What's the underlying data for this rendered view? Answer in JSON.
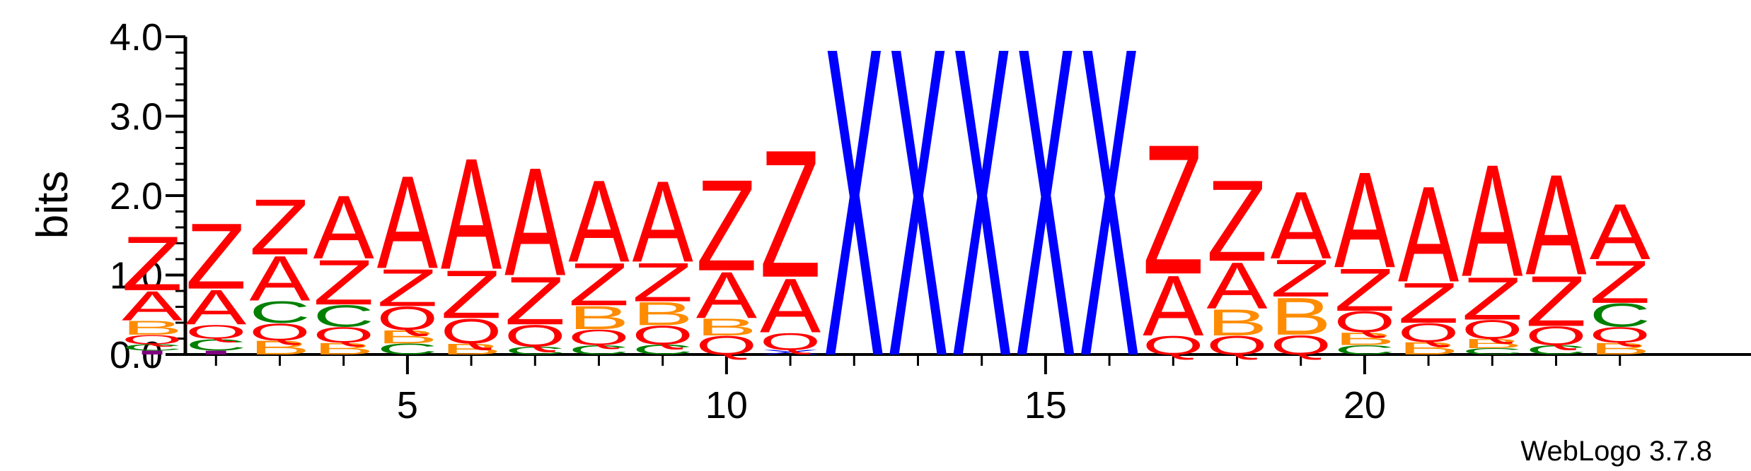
{
  "chart_data": {
    "type": "sequence-logo",
    "ylabel": "bits",
    "ylim": [
      0,
      4.0
    ],
    "yticks": [
      "0.0",
      "1.0",
      "2.0",
      "3.0",
      "4.0"
    ],
    "xticks": [
      "5",
      "10",
      "15",
      "20"
    ],
    "xtick_positions": [
      5,
      10,
      15,
      20
    ],
    "positions": 24,
    "credit": "WebLogo 3.7.8",
    "colors": {
      "Z": "#ff0000",
      "A": "#ff0000",
      "Q": "#ff0000",
      "X": "#0000ff",
      "B": "#ff8c00",
      "C": "#008000",
      "I": "#800080"
    },
    "stacks": [
      [
        [
          "I",
          0.05
        ],
        [
          "C",
          0.08
        ],
        [
          "Q",
          0.12
        ],
        [
          "B",
          0.18
        ],
        [
          "A",
          0.38
        ],
        [
          "Z",
          0.7
        ]
      ],
      [
        [
          "I",
          0.05
        ],
        [
          "C",
          0.15
        ],
        [
          "Q",
          0.18
        ],
        [
          "A",
          0.45
        ],
        [
          "Z",
          0.85
        ]
      ],
      [
        [
          "B",
          0.18
        ],
        [
          "Q",
          0.22
        ],
        [
          "C",
          0.28
        ],
        [
          "A",
          0.58
        ],
        [
          "Z",
          0.72
        ]
      ],
      [
        [
          "B",
          0.15
        ],
        [
          "Q",
          0.2
        ],
        [
          "C",
          0.28
        ],
        [
          "Z",
          0.58
        ],
        [
          "A",
          0.82
        ]
      ],
      [
        [
          "C",
          0.14
        ],
        [
          "B",
          0.17
        ],
        [
          "Q",
          0.3
        ],
        [
          "Z",
          0.48
        ],
        [
          "A",
          1.2
        ]
      ],
      [
        [
          "B",
          0.14
        ],
        [
          "Q",
          0.32
        ],
        [
          "Z",
          0.62
        ],
        [
          "A",
          1.44
        ]
      ],
      [
        [
          "C",
          0.1
        ],
        [
          "Q",
          0.28
        ],
        [
          "Z",
          0.62
        ],
        [
          "A",
          1.4
        ]
      ],
      [
        [
          "C",
          0.12
        ],
        [
          "Q",
          0.2
        ],
        [
          "B",
          0.3
        ],
        [
          "Z",
          0.55
        ],
        [
          "A",
          1.06
        ]
      ],
      [
        [
          "C",
          0.13
        ],
        [
          "Q",
          0.24
        ],
        [
          "B",
          0.3
        ],
        [
          "Z",
          0.5
        ],
        [
          "A",
          1.05
        ]
      ],
      [
        [
          "Q",
          0.24
        ],
        [
          "B",
          0.22
        ],
        [
          "A",
          0.6
        ],
        [
          "Z",
          1.18
        ]
      ],
      [
        [
          "X",
          0.06
        ],
        [
          "Q",
          0.22
        ],
        [
          "A",
          0.7
        ],
        [
          "Z",
          1.65
        ]
      ],
      [
        [
          "X",
          4.0
        ]
      ],
      [
        [
          "X",
          4.0
        ]
      ],
      [
        [
          "X",
          4.0
        ]
      ],
      [
        [
          "X",
          4.0
        ]
      ],
      [
        [
          "X",
          4.0
        ]
      ],
      [
        [
          "Q",
          0.24
        ],
        [
          "A",
          0.78
        ],
        [
          "Z",
          1.68
        ]
      ],
      [
        [
          "Q",
          0.24
        ],
        [
          "B",
          0.34
        ],
        [
          "A",
          0.6
        ],
        [
          "Z",
          1.05
        ]
      ],
      [
        [
          "Q",
          0.25
        ],
        [
          "B",
          0.48
        ],
        [
          "Z",
          0.48
        ],
        [
          "A",
          0.87
        ]
      ],
      [
        [
          "C",
          0.12
        ],
        [
          "B",
          0.16
        ],
        [
          "Q",
          0.27
        ],
        [
          "Z",
          0.55
        ],
        [
          "A",
          1.24
        ]
      ],
      [
        [
          "B",
          0.16
        ],
        [
          "Q",
          0.24
        ],
        [
          "Z",
          0.52
        ],
        [
          "A",
          1.24
        ]
      ],
      [
        [
          "C",
          0.08
        ],
        [
          "B",
          0.12
        ],
        [
          "Q",
          0.24
        ],
        [
          "Z",
          0.55
        ],
        [
          "A",
          1.45
        ]
      ],
      [
        [
          "C",
          0.12
        ],
        [
          "Q",
          0.24
        ],
        [
          "Z",
          0.65
        ],
        [
          "A",
          1.3
        ]
      ],
      [
        [
          "B",
          0.15
        ],
        [
          "Q",
          0.2
        ],
        [
          "C",
          0.3
        ],
        [
          "Z",
          0.55
        ],
        [
          "A",
          0.72
        ]
      ]
    ]
  }
}
